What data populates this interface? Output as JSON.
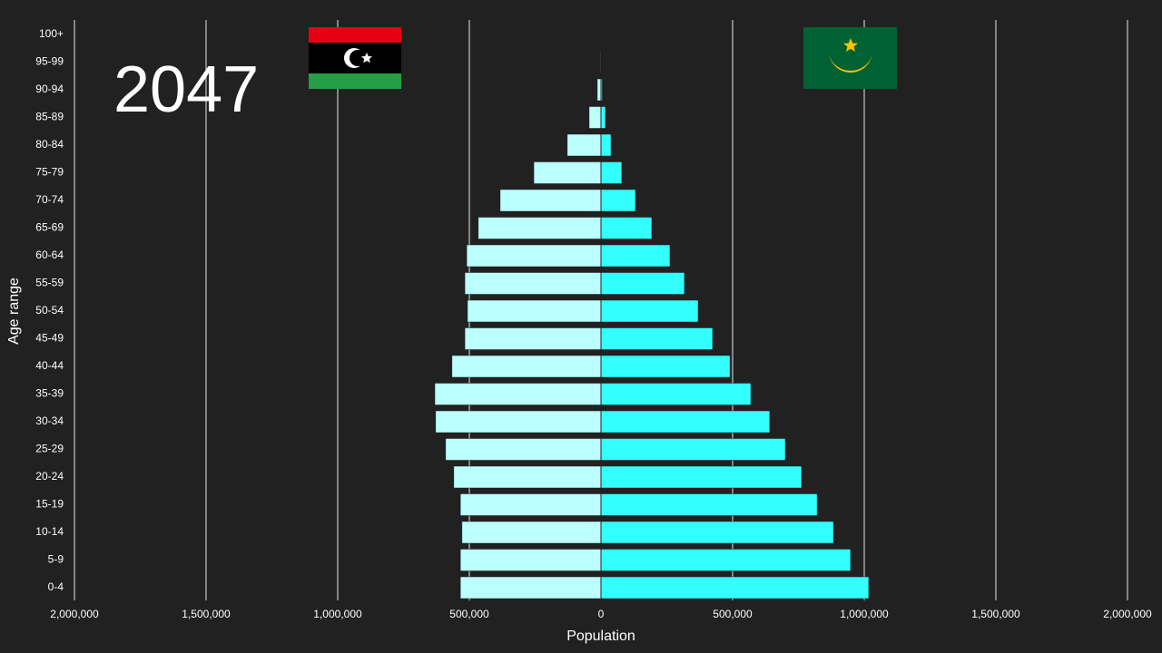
{
  "chart_data": {
    "type": "pyramid",
    "year": "2047",
    "xlabel": "Population",
    "ylabel": "Age range",
    "categories": [
      "0-4",
      "5-9",
      "10-14",
      "15-19",
      "20-24",
      "25-29",
      "30-34",
      "35-39",
      "40-44",
      "45-49",
      "50-54",
      "55-59",
      "60-64",
      "65-69",
      "70-74",
      "75-79",
      "80-84",
      "85-89",
      "90-94",
      "95-99",
      "100+"
    ],
    "series": [
      {
        "color": "#bbffff",
        "values": [
          -534000,
          -534000,
          -528000,
          -534000,
          -559000,
          -590000,
          -628000,
          -631000,
          -566000,
          -517000,
          -507000,
          -517000,
          -510000,
          -466000,
          -383000,
          -255000,
          -128000,
          -45000,
          -14000,
          -3000,
          -1000
        ]
      },
      {
        "color": "#33ffff",
        "values": [
          1017000,
          948000,
          883000,
          821000,
          762000,
          700000,
          641000,
          569000,
          490000,
          424000,
          369000,
          317000,
          262000,
          193000,
          131000,
          79000,
          38000,
          17000,
          5000,
          1000,
          500
        ]
      }
    ],
    "xlim": [
      -2000000,
      2000000
    ],
    "xticks": [
      {
        "value": -2000000,
        "label": "2,000,000"
      },
      {
        "value": -1500000,
        "label": "1,500,000"
      },
      {
        "value": -1000000,
        "label": "1,000,000"
      },
      {
        "value": -500000,
        "label": "500,000"
      },
      0,
      {
        "value": 500000,
        "label": "500,000"
      },
      {
        "value": 1000000,
        "label": "1,000,000"
      },
      {
        "value": 1500000,
        "label": "1,500,000"
      },
      {
        "value": 2000000,
        "label": "2,000,000"
      }
    ],
    "grid": true
  }
}
